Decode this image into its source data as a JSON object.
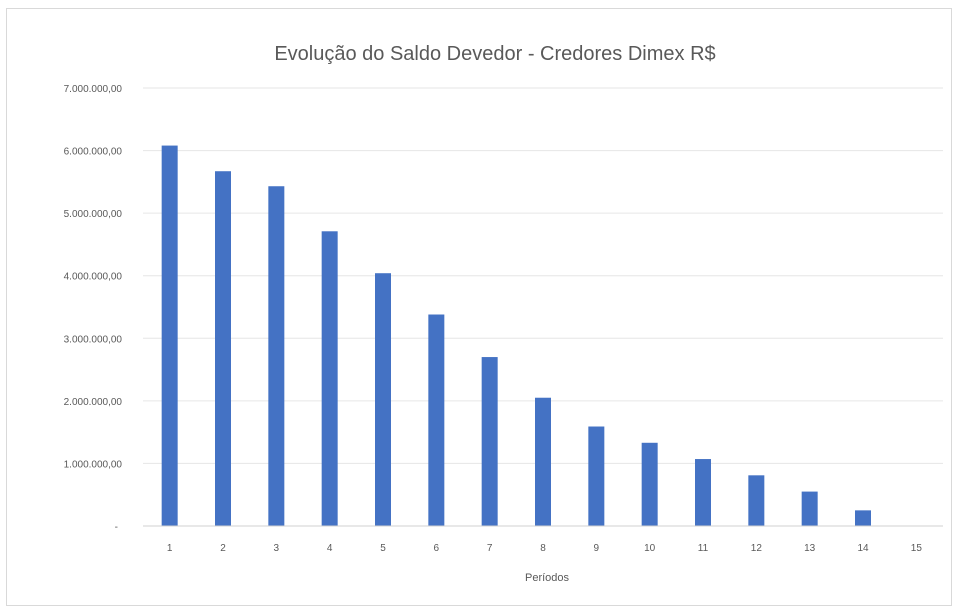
{
  "chart_data": {
    "type": "bar",
    "title": "Evolução do Saldo Devedor - Credores Dimex R$",
    "xlabel": "Períodos",
    "ylabel": "",
    "categories": [
      "1",
      "2",
      "3",
      "4",
      "5",
      "6",
      "7",
      "8",
      "9",
      "10",
      "11",
      "12",
      "13",
      "14",
      "15"
    ],
    "values": [
      6080000,
      5670000,
      5430000,
      4710000,
      4040000,
      3380000,
      2700000,
      2050000,
      1590000,
      1330000,
      1070000,
      810000,
      550000,
      250000,
      0
    ],
    "ylim": [
      0,
      7000000
    ],
    "yticks": [
      {
        "value": 0,
        "label": "-"
      },
      {
        "value": 1000000,
        "label": "1.000.000,00"
      },
      {
        "value": 2000000,
        "label": "2.000.000,00"
      },
      {
        "value": 3000000,
        "label": "3.000.000,00"
      },
      {
        "value": 4000000,
        "label": "4.000.000,00"
      },
      {
        "value": 5000000,
        "label": "5.000.000,00"
      },
      {
        "value": 6000000,
        "label": "6.000.000,00"
      },
      {
        "value": 7000000,
        "label": "7.000.000,00"
      }
    ],
    "grid": true,
    "legend": "none",
    "bar_color": "#4472c4"
  }
}
